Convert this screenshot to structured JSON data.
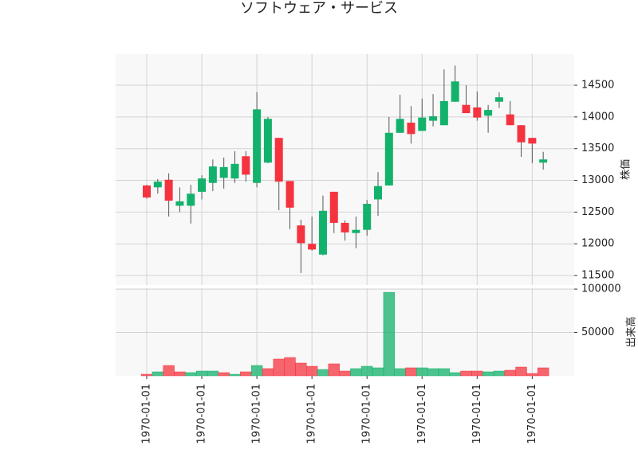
{
  "chart_data": {
    "type": "candlestick",
    "title": "ソフトウェア・サービス",
    "categories": [
      "1970-01-01",
      null,
      null,
      null,
      null,
      "1970-01-01",
      null,
      null,
      null,
      null,
      "1970-01-01",
      null,
      null,
      null,
      null,
      "1970-01-01",
      null,
      null,
      null,
      null,
      "1970-01-01",
      null,
      null,
      null,
      null,
      "1970-01-01",
      null,
      null,
      null,
      null,
      "1970-01-01",
      null,
      null,
      null,
      null,
      "1970-01-01",
      null
    ],
    "open": [
      12920,
      12890,
      13010,
      12600,
      12600,
      12820,
      12960,
      13040,
      13030,
      13380,
      12960,
      13280,
      13670,
      12990,
      12290,
      12000,
      11830,
      12820,
      12330,
      12170,
      12220,
      12700,
      12920,
      13750,
      13910,
      13780,
      13940,
      13870,
      14240,
      14190,
      14150,
      14020,
      14240,
      14040,
      13870,
      13670,
      13280
    ],
    "high": [
      12930,
      13020,
      13110,
      12890,
      12930,
      13080,
      13330,
      13360,
      13460,
      13460,
      14390,
      14000,
      13670,
      12990,
      12380,
      12430,
      12760,
      12820,
      12370,
      12430,
      12690,
      13130,
      14000,
      14350,
      14170,
      14290,
      14360,
      14750,
      14810,
      14500,
      14400,
      14190,
      14390,
      14250,
      13870,
      13670,
      13450
    ],
    "low": [
      12710,
      12790,
      12430,
      12500,
      12320,
      12700,
      12830,
      12870,
      12960,
      12980,
      12890,
      13270,
      12530,
      12230,
      11540,
      11890,
      11820,
      12170,
      12050,
      11930,
      12130,
      12440,
      12920,
      13750,
      13580,
      13780,
      13850,
      13870,
      14240,
      14060,
      13940,
      13750,
      14140,
      13870,
      13370,
      13270,
      13170
    ],
    "close": [
      12730,
      12980,
      12680,
      12670,
      12790,
      13030,
      13220,
      13210,
      13260,
      13090,
      14120,
      13970,
      12980,
      12570,
      12010,
      11910,
      12520,
      12330,
      12180,
      12220,
      12630,
      12910,
      13750,
      13970,
      13730,
      13990,
      14010,
      14250,
      14560,
      14060,
      13990,
      14110,
      14310,
      13870,
      13600,
      13580,
      13330
    ],
    "volume": [
      1800,
      4600,
      11900,
      4600,
      3700,
      5500,
      5500,
      3700,
      1800,
      4600,
      11900,
      8300,
      19300,
      21100,
      14700,
      11000,
      7300,
      13800,
      5500,
      8300,
      11000,
      9200,
      96300,
      8300,
      9200,
      9200,
      8300,
      8300,
      3700,
      5500,
      5500,
      4600,
      5500,
      6400,
      10100,
      2700,
      9200
    ],
    "ylabel": "株価",
    "volume_label": "出来高",
    "ylim": [
      11350,
      14990
    ],
    "yticks": [
      11500,
      12000,
      12500,
      13000,
      13500,
      14000,
      14500
    ],
    "volume_ylim": [
      0,
      101000
    ],
    "volume_yticks": [
      50000,
      100000
    ],
    "up_color": "#13b26c",
    "down_color": "#f5333f",
    "grid": true
  }
}
